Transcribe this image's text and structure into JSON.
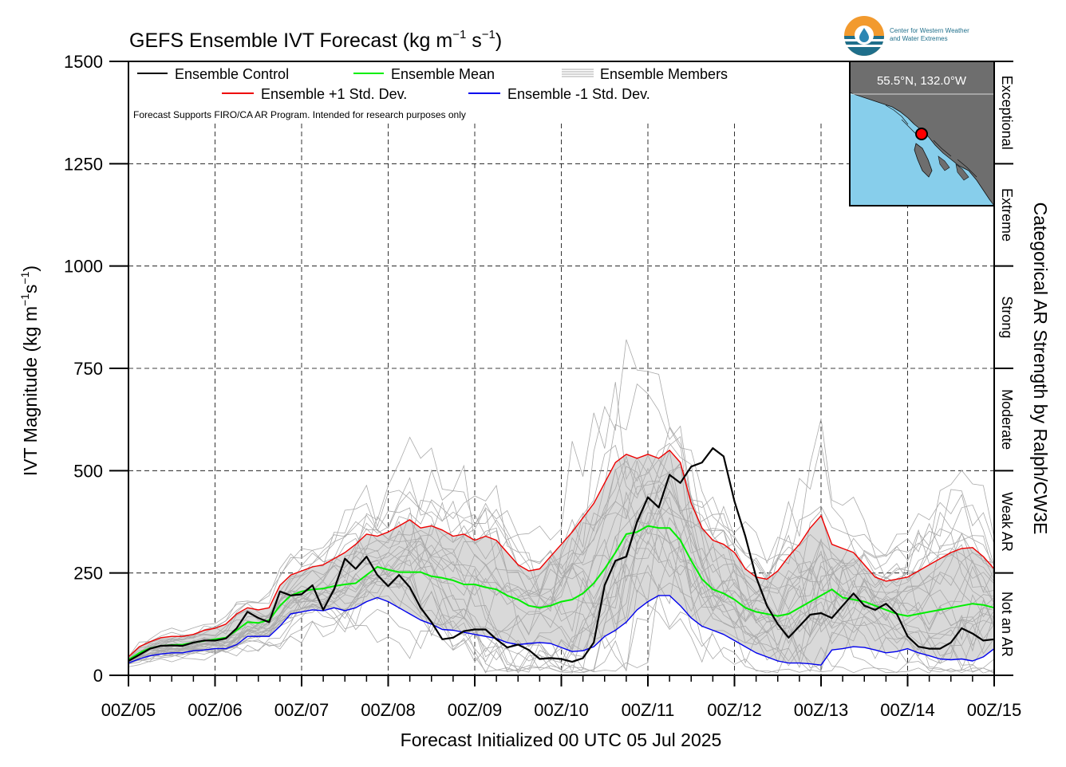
{
  "chart_data": {
    "type": "line",
    "title_main": "GEFS Ensemble IVT Forecast (kg m",
    "title_exp1": "−1",
    "title_mid": " s",
    "title_exp2": "−1",
    "title_end": ")",
    "ylabel_main": "IVT Magnitude (kg m",
    "ylabel_exp1": "−1",
    "ylabel_mid": "s",
    "ylabel_exp2": "−1",
    "ylabel_end": ")",
    "xlabel": "Forecast Initialized 00 UTC 05 Jul 2025",
    "right_label": "Categorical AR Strength by Ralph/CW3E",
    "ylim": [
      0,
      1500
    ],
    "xlim": [
      0,
      240
    ],
    "y_ticks": [
      0,
      250,
      500,
      750,
      1000,
      1250,
      1500
    ],
    "y_tick_labels": [
      "0",
      "250",
      "500",
      "750",
      "1000",
      "1250",
      "1500"
    ],
    "x_ticks": [
      0,
      24,
      48,
      72,
      96,
      120,
      144,
      168,
      192,
      216,
      240
    ],
    "x_tick_labels": [
      "00Z/05",
      "00Z/06",
      "00Z/07",
      "00Z/08",
      "00Z/09",
      "00Z/10",
      "00Z/11",
      "00Z/12",
      "00Z/13",
      "00Z/14",
      "00Z/15"
    ],
    "categories": [
      {
        "label": "Not an AR",
        "range": [
          0,
          250
        ]
      },
      {
        "label": "Weak AR",
        "range": [
          250,
          500
        ]
      },
      {
        "label": "Moderate",
        "range": [
          500,
          750
        ]
      },
      {
        "label": "Strong",
        "range": [
          750,
          1000
        ]
      },
      {
        "label": "Extreme",
        "range": [
          1000,
          1250
        ]
      },
      {
        "label": "Exceptional",
        "range": [
          1250,
          1500
        ]
      }
    ],
    "legend": {
      "control": "Ensemble Control",
      "mean": "Ensemble Mean",
      "members": "Ensemble Members",
      "plus_std": "Ensemble +1 Std. Dev.",
      "minus_std": "Ensemble -1 Std. Dev.",
      "note": "Forecast Supports FIRO/CA AR Program. Intended for research purposes only"
    },
    "colors": {
      "control": "#000000",
      "mean": "#00ee00",
      "plus_std": "#ee0000",
      "minus_std": "#0000ee",
      "members": "#aaaaaa",
      "band": "#d9d9d9",
      "inset_land": "#6e6e6e",
      "inset_water": "#87ceeb",
      "marker": "#ff0000"
    },
    "location_label": "55.5°N, 132.0°W",
    "logo_text_line1": "Center for Western Weather",
    "logo_text_line2": "and Water Extremes",
    "x": [
      0,
      3,
      6,
      9,
      12,
      15,
      18,
      21,
      24,
      27,
      30,
      33,
      36,
      39,
      42,
      45,
      48,
      51,
      54,
      57,
      60,
      63,
      66,
      69,
      72,
      75,
      78,
      81,
      84,
      87,
      90,
      93,
      96,
      99,
      102,
      105,
      108,
      111,
      114,
      117,
      120,
      123,
      126,
      129,
      132,
      135,
      138,
      141,
      144,
      147,
      150,
      153,
      156,
      159,
      162,
      165,
      168,
      171,
      174,
      177,
      180,
      183,
      186,
      189,
      192,
      195,
      198,
      201,
      204,
      207,
      210,
      213,
      216,
      219,
      222,
      225,
      228,
      231,
      234,
      237,
      240
    ],
    "series": [
      {
        "name": "Ensemble Control",
        "key": "control",
        "values": [
          35,
          50,
          65,
          72,
          73,
          72,
          80,
          85,
          85,
          90,
          115,
          155,
          140,
          130,
          205,
          195,
          198,
          220,
          160,
          210,
          285,
          260,
          290,
          245,
          218,
          245,
          215,
          165,
          130,
          88,
          92,
          108,
          112,
          112,
          88,
          68,
          75,
          62,
          40,
          42,
          40,
          33,
          42,
          80,
          220,
          280,
          290,
          375,
          435,
          410,
          490,
          470,
          510,
          520,
          555,
          535,
          425,
          340,
          240,
          170,
          125,
          92,
          120,
          148,
          152,
          140,
          170,
          200,
          170,
          160,
          175,
          150,
          95,
          70,
          65,
          65,
          80,
          115,
          102,
          85,
          88
        ]
      },
      {
        "name": "Ensemble Mean",
        "key": "mean",
        "values": [
          38,
          55,
          66,
          72,
          74,
          75,
          80,
          84,
          88,
          92,
          110,
          130,
          128,
          135,
          170,
          195,
          205,
          210,
          212,
          218,
          222,
          225,
          245,
          265,
          258,
          252,
          252,
          252,
          242,
          238,
          232,
          222,
          222,
          215,
          210,
          195,
          185,
          170,
          165,
          170,
          180,
          185,
          200,
          225,
          260,
          300,
          345,
          350,
          365,
          360,
          360,
          330,
          280,
          235,
          210,
          200,
          185,
          165,
          155,
          150,
          145,
          150,
          165,
          180,
          195,
          210,
          190,
          185,
          180,
          170,
          160,
          150,
          145,
          150,
          155,
          160,
          165,
          170,
          175,
          172,
          165
        ]
      },
      {
        "name": "Ensemble +1 Std. Dev.",
        "key": "plus_std",
        "values": [
          45,
          70,
          82,
          92,
          95,
          95,
          100,
          110,
          115,
          125,
          150,
          165,
          160,
          165,
          220,
          245,
          255,
          265,
          270,
          285,
          300,
          320,
          345,
          340,
          350,
          365,
          380,
          360,
          365,
          355,
          340,
          345,
          330,
          340,
          330,
          300,
          270,
          255,
          260,
          290,
          320,
          350,
          385,
          420,
          470,
          520,
          540,
          530,
          540,
          530,
          550,
          520,
          420,
          360,
          330,
          320,
          300,
          260,
          240,
          235,
          255,
          290,
          320,
          360,
          390,
          320,
          310,
          300,
          270,
          240,
          230,
          235,
          240,
          255,
          270,
          285,
          300,
          310,
          312,
          290,
          260
        ]
      },
      {
        "name": "Ensemble -1 Std. Dev.",
        "key": "minus_std",
        "values": [
          30,
          40,
          48,
          52,
          55,
          55,
          60,
          62,
          65,
          65,
          75,
          95,
          95,
          95,
          120,
          150,
          155,
          160,
          158,
          165,
          158,
          165,
          180,
          190,
          180,
          165,
          150,
          135,
          125,
          112,
          110,
          105,
          100,
          95,
          90,
          80,
          75,
          78,
          80,
          78,
          68,
          58,
          60,
          70,
          95,
          110,
          130,
          160,
          180,
          195,
          195,
          170,
          140,
          120,
          110,
          100,
          85,
          70,
          55,
          45,
          35,
          30,
          30,
          28,
          25,
          62,
          65,
          70,
          68,
          62,
          55,
          58,
          65,
          55,
          48,
          40,
          38,
          40,
          35,
          45,
          65
        ]
      }
    ]
  }
}
